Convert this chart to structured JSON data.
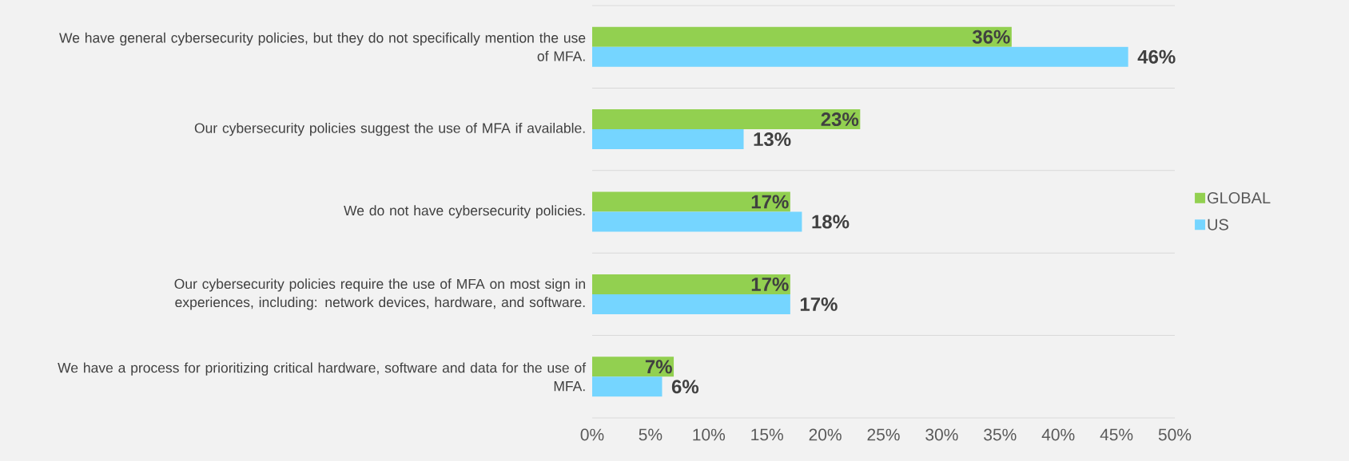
{
  "chart_data": {
    "type": "bar",
    "orientation": "horizontal",
    "categories": [
      "We have general cybersecurity policies, but they do not specifically mention the use of MFA.",
      "Our cybersecurity policies suggest the use of MFA if available.",
      "We do not have cybersecurity policies.",
      "Our cybersecurity policies require the use of MFA on most sign in experiences, including: network devices, hardware, and software.",
      "We have a process for prioritizing critical hardware, software and data for the use of MFA."
    ],
    "series": [
      {
        "name": "GLOBAL",
        "color": "#92d050",
        "values": [
          36,
          23,
          17,
          17,
          7
        ],
        "value_labels": [
          "36%",
          "23%",
          "17%",
          "17%",
          "7%"
        ]
      },
      {
        "name": "US",
        "color": "#75d5ff",
        "values": [
          46,
          13,
          18,
          17,
          6
        ],
        "value_labels": [
          "46%",
          "13%",
          "18%",
          "17%",
          "6%"
        ]
      }
    ],
    "xlim": [
      0,
      50
    ],
    "xticks": [
      {
        "value": 0,
        "label": "0%"
      },
      {
        "value": 5,
        "label": "5%"
      },
      {
        "value": 10,
        "label": "10%"
      },
      {
        "value": 15,
        "label": "15%"
      },
      {
        "value": 20,
        "label": "20%"
      },
      {
        "value": 25,
        "label": "25%"
      },
      {
        "value": 30,
        "label": "30%"
      },
      {
        "value": 35,
        "label": "35%"
      },
      {
        "value": 40,
        "label": "40%"
      },
      {
        "value": 45,
        "label": "45%"
      },
      {
        "value": 50,
        "label": "50%"
      }
    ],
    "grid": "y",
    "legend": "right"
  }
}
